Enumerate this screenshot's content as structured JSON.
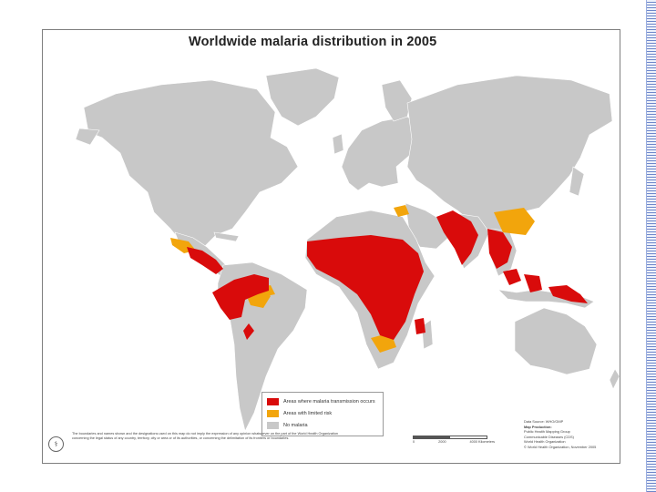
{
  "map": {
    "title": "Worldwide malaria distribution in 2005",
    "colors": {
      "ocean": "#ffffff",
      "land": "#c8c8c8",
      "border": "#ffffff",
      "transmission": "#d90b0b",
      "limited": "#f2a50c"
    }
  },
  "legend": {
    "items": [
      {
        "label": "Areas where malaria transmission occurs",
        "color": "#d90b0b"
      },
      {
        "label": "Areas with limited risk",
        "color": "#f2a50c"
      },
      {
        "label": "No malaria",
        "color": "#c8c8c8"
      }
    ]
  },
  "footnote": {
    "lines": [
      "The boundaries and names shown and the designations used on this map do not imply the expression of any opinion whatsoever on the part of the World Health Organization",
      "concerning the legal status of any country, territory, city or area or of its authorities, or concerning the delimitation of its frontiers or boundaries."
    ]
  },
  "scale": {
    "labels": [
      "0",
      "2000",
      "4000 Kilometers"
    ]
  },
  "credits": {
    "lines": [
      "Data Source: WHO/GMP",
      "Map Production:",
      "Public Health Mapping Group",
      "Communicable Diseases (CDS)",
      "World Health Organization",
      "© World Health Organization, November 2005"
    ]
  },
  "emblem": {
    "icon": "who-emblem-icon",
    "glyph": "⚕"
  }
}
